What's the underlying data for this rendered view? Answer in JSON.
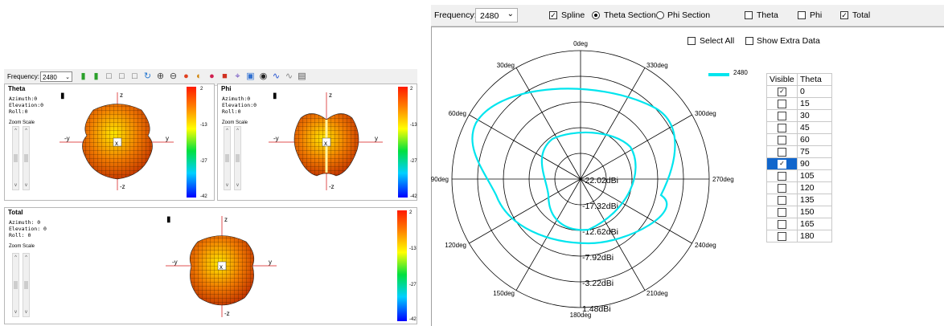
{
  "left_panel": {
    "toolbar": {
      "frequency_label": "Frequency:",
      "frequency_value": "2480",
      "icons": [
        "colorbar-icon",
        "colorbar-alt-icon",
        "view-front-icon",
        "view-side-icon",
        "view-top-icon",
        "rotate-icon",
        "zoom-in-icon",
        "zoom-out-icon",
        "palette-icon",
        "half-sphere-icon",
        "sphere-icon",
        "box-icon",
        "axes-icon",
        "image-icon",
        "record-icon",
        "wave-icon",
        "wave-alt-icon",
        "export-icon"
      ]
    },
    "views": [
      {
        "title": "Theta",
        "info": "Azimuth:0\nElevation:0\nRoll:0",
        "zoom_label": "Zoom Scale",
        "ticks": [
          "2",
          "-13",
          "-27",
          "-42"
        ]
      },
      {
        "title": "Phi",
        "info": "Azimuth:0\nElevation:0\nRoll:0",
        "zoom_label": "Zoom Scale",
        "ticks": [
          "2",
          "-13",
          "-27",
          "-42"
        ]
      },
      {
        "title": "Total",
        "info": "Azimuth: 0\nElevation: 0\nRoll: 0",
        "zoom_label": "Zoom Scale",
        "ticks": [
          "2",
          "-13",
          "-27",
          "-42"
        ]
      }
    ],
    "axis_labels": {
      "z": "z",
      "neg_z": "-z",
      "y": "y",
      "neg_y": "-y",
      "x": "x"
    }
  },
  "right_panel": {
    "toolbar": {
      "frequency_label": "Frequency:",
      "frequency_value": "2480",
      "spline_label": "Spline",
      "spline_checked": true,
      "theta_section_label": "Theta Section",
      "phi_section_label": "Phi Section",
      "section_selected": "theta",
      "theta_label": "Theta",
      "phi_label": "Phi",
      "total_label": "Total",
      "total_checked": true
    },
    "select_all_label": "Select All",
    "show_extra_label": "Show Extra Data",
    "legend_label": "2480",
    "trace_color": "#00e5ee",
    "polar": {
      "angle_labels": [
        {
          "text": "0deg",
          "angle": 0
        },
        {
          "text": "330deg",
          "angle": 30
        },
        {
          "text": "300deg",
          "angle": 60
        },
        {
          "text": "270deg",
          "angle": 90
        },
        {
          "text": "240deg",
          "angle": 120
        },
        {
          "text": "210deg",
          "angle": 150
        },
        {
          "text": "180deg",
          "angle": 180
        },
        {
          "text": "150deg",
          "angle": 210
        },
        {
          "text": "120deg",
          "angle": 240
        },
        {
          "text": "90deg",
          "angle": 270
        },
        {
          "text": "60deg",
          "angle": 300
        },
        {
          "text": "30deg",
          "angle": 330
        }
      ],
      "radial_labels": [
        "-22.02dBi",
        "-17.32dBi",
        "-12.62dBi",
        "-7.92dBi",
        "-3.22dBi",
        "1.48dBi"
      ]
    },
    "table": {
      "header_visible": "Visible",
      "header_theta": "Theta",
      "rows": [
        {
          "theta": "0",
          "checked": true,
          "selected": false
        },
        {
          "theta": "15",
          "checked": false,
          "selected": false
        },
        {
          "theta": "30",
          "checked": false,
          "selected": false
        },
        {
          "theta": "45",
          "checked": false,
          "selected": false
        },
        {
          "theta": "60",
          "checked": false,
          "selected": false
        },
        {
          "theta": "75",
          "checked": false,
          "selected": false
        },
        {
          "theta": "90",
          "checked": true,
          "selected": true
        },
        {
          "theta": "105",
          "checked": false,
          "selected": false
        },
        {
          "theta": "120",
          "checked": false,
          "selected": false
        },
        {
          "theta": "135",
          "checked": false,
          "selected": false
        },
        {
          "theta": "150",
          "checked": false,
          "selected": false
        },
        {
          "theta": "165",
          "checked": false,
          "selected": false
        },
        {
          "theta": "180",
          "checked": false,
          "selected": false
        }
      ]
    }
  }
}
